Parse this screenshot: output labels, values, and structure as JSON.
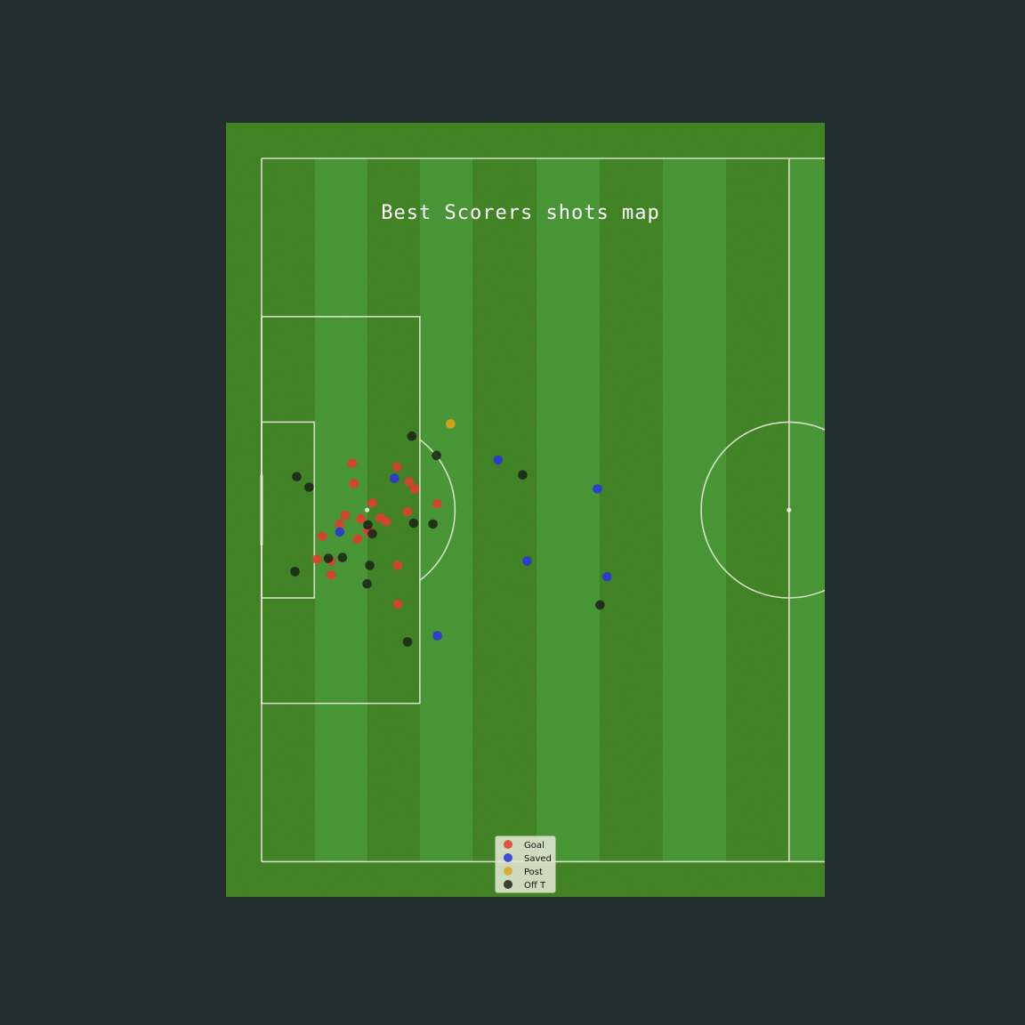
{
  "chart_data": {
    "type": "scatter",
    "title": "Best Scorers shots map",
    "pitch": {
      "length": 120,
      "width": 80,
      "view": "left half, horizontal",
      "stripe_colors": [
        "#468528",
        "#4d993a"
      ],
      "background_color": "#222f2c",
      "line_color": "#e6ead7"
    },
    "legend": {
      "position": "bottom-center",
      "entries": [
        {
          "key": "goal",
          "label": "Goal",
          "color": "#e03c2d"
        },
        {
          "key": "saved",
          "label": "Saved",
          "color": "#2a33dd"
        },
        {
          "key": "post",
          "label": "Post",
          "color": "#dea51b"
        },
        {
          "key": "off_target",
          "label": "Off T",
          "color": "#1b261a"
        }
      ]
    },
    "series": [
      {
        "name": "Goal",
        "points": [
          [
            10.3,
            34.7
          ],
          [
            10.5,
            37.0
          ],
          [
            15.4,
            35.1
          ],
          [
            12.6,
            39.2
          ],
          [
            16.8,
            36.8
          ],
          [
            17.4,
            37.6
          ],
          [
            8.9,
            41.6
          ],
          [
            11.3,
            41.0
          ],
          [
            14.2,
            41.3
          ],
          [
            16.6,
            40.2
          ],
          [
            13.5,
            40.9
          ],
          [
            6.9,
            43.0
          ],
          [
            9.5,
            40.6
          ],
          [
            12.4,
            42.6
          ],
          [
            10.9,
            43.3
          ],
          [
            20.0,
            39.3
          ],
          [
            6.3,
            45.6
          ],
          [
            7.9,
            45.8
          ],
          [
            7.9,
            47.4
          ],
          [
            15.5,
            46.3
          ],
          [
            15.5,
            50.7
          ],
          [
            12.1,
            42.3
          ]
        ]
      },
      {
        "name": "Saved",
        "points": [
          [
            15.1,
            36.4
          ],
          [
            26.9,
            34.3
          ],
          [
            38.2,
            37.6
          ],
          [
            8.9,
            42.5
          ],
          [
            30.2,
            45.8
          ],
          [
            39.3,
            47.6
          ],
          [
            20.0,
            54.3
          ]
        ]
      },
      {
        "name": "Post",
        "points": [
          [
            21.5,
            30.2
          ]
        ]
      },
      {
        "name": "Off T",
        "points": [
          [
            17.1,
            31.6
          ],
          [
            19.9,
            33.8
          ],
          [
            4.0,
            36.2
          ],
          [
            5.4,
            37.4
          ],
          [
            29.7,
            36.0
          ],
          [
            12.1,
            41.7
          ],
          [
            12.6,
            42.7
          ],
          [
            17.3,
            41.5
          ],
          [
            19.5,
            41.6
          ],
          [
            7.6,
            45.5
          ],
          [
            9.2,
            45.4
          ],
          [
            12.3,
            46.3
          ],
          [
            3.8,
            47.0
          ],
          [
            12.0,
            48.4
          ],
          [
            38.5,
            50.8
          ],
          [
            16.6,
            55.0
          ]
        ]
      }
    ]
  }
}
